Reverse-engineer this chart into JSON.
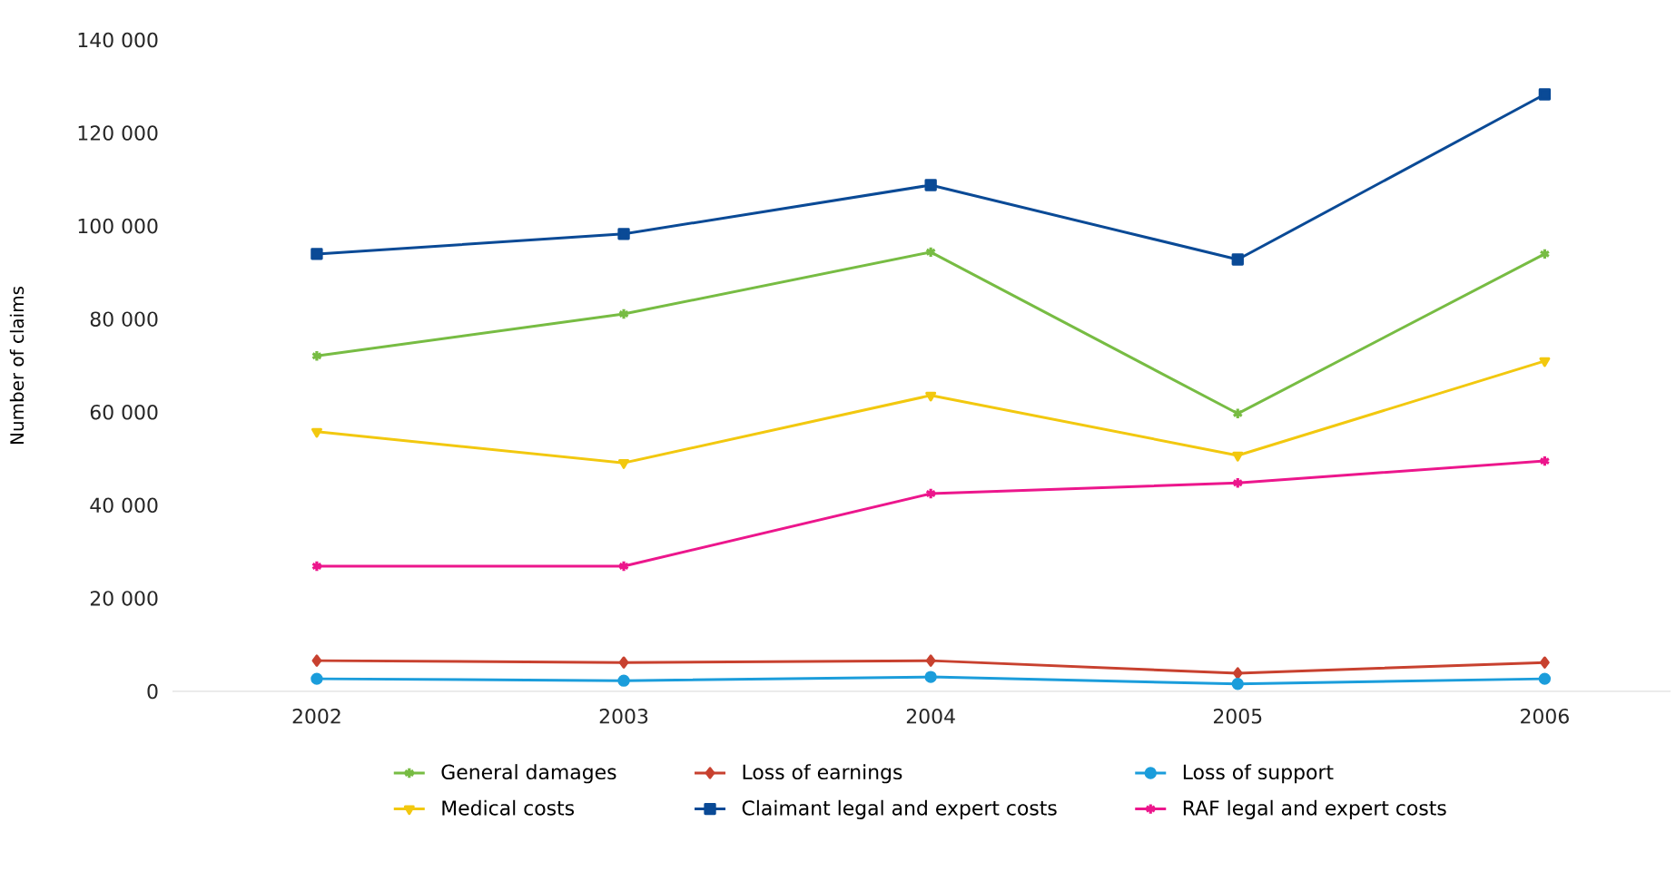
{
  "chart_data": {
    "type": "line",
    "ylabel": "Number of claims",
    "categories": [
      "2002",
      "2003",
      "2004",
      "2005",
      "2006"
    ],
    "ylim": [
      0,
      140000
    ],
    "yticks": [
      {
        "value": 0,
        "label": "0"
      },
      {
        "value": 20000,
        "label": "20 000"
      },
      {
        "value": 40000,
        "label": "40 000"
      },
      {
        "value": 60000,
        "label": "60 000"
      },
      {
        "value": 80000,
        "label": "80 000"
      },
      {
        "value": 100000,
        "label": "100 000"
      },
      {
        "value": 120000,
        "label": "120 000"
      },
      {
        "value": 140000,
        "label": "140 000"
      }
    ],
    "grid": false,
    "legend": "bottom",
    "line_style": "solid",
    "series": [
      {
        "name": "General damages",
        "color": "#77bc43",
        "marker": "cross",
        "values": [
          72100,
          81100,
          94400,
          59700,
          94000
        ]
      },
      {
        "name": "Loss of earnings",
        "color": "#c8412f",
        "marker": "diamond",
        "values": [
          6600,
          6200,
          6600,
          3900,
          6200
        ]
      },
      {
        "name": "Loss of support",
        "color": "#1b9ddb",
        "marker": "circle",
        "values": [
          2700,
          2300,
          3100,
          1600,
          2700
        ]
      },
      {
        "name": "Medical costs",
        "color": "#f2c80f",
        "marker": "triangle",
        "values": [
          55800,
          49100,
          63600,
          50700,
          71000
        ]
      },
      {
        "name": "Claimant legal and expert costs",
        "color": "#0a4a96",
        "marker": "square",
        "values": [
          94000,
          98300,
          108800,
          92800,
          128300
        ]
      },
      {
        "name": "RAF legal and expert costs",
        "color": "#ec168c",
        "marker": "cross",
        "values": [
          26900,
          26900,
          42500,
          44800,
          49500
        ]
      }
    ]
  }
}
